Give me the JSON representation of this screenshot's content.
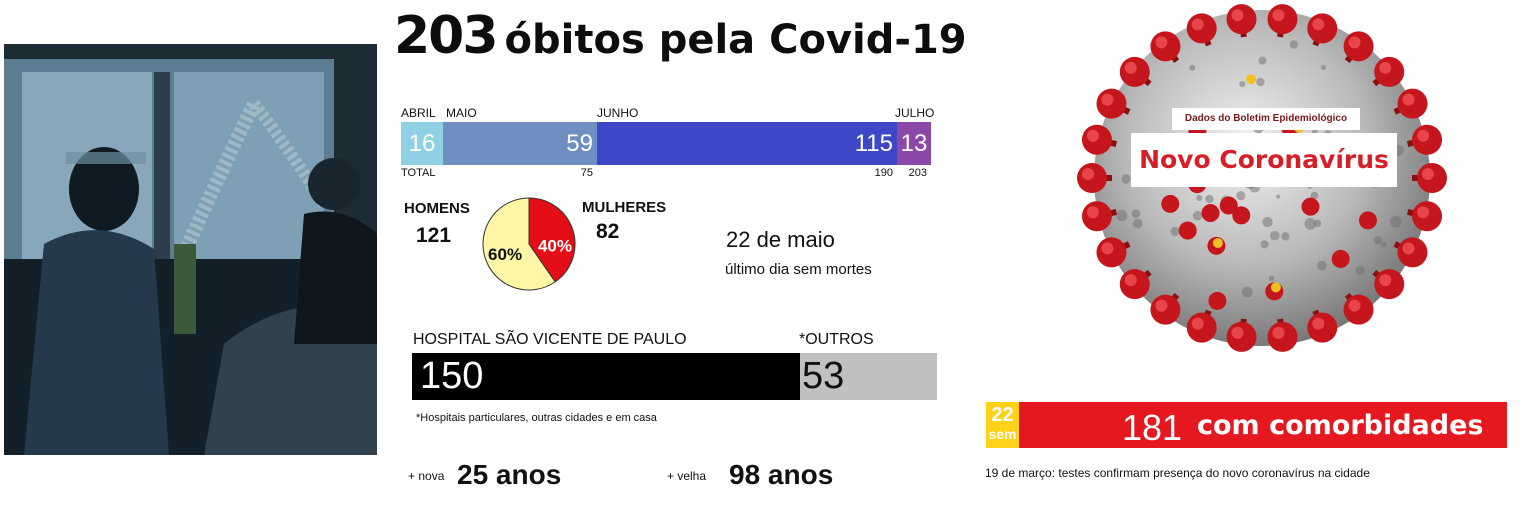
{
  "title": {
    "number": "203",
    "text": "óbitos pela Covid-19"
  },
  "colors": {
    "abril": "#8fd0e4",
    "maio": "#6f8fc2",
    "junho": "#3d47c7",
    "julho": "#8c48a8",
    "female": "#e30e16",
    "male": "#fdf7a5",
    "hospital": "#000000",
    "outros": "#c0c0c0",
    "sem": "#ffd21a",
    "comorbidity": "#e5181f"
  },
  "chart_data": [
    {
      "type": "bar",
      "categories": [
        "ABRIL",
        "MAIO",
        "JUNHO",
        "JULHO"
      ],
      "values": [
        16,
        59,
        115,
        13
      ],
      "cumulative_labels": [
        "TOTAL",
        "75",
        "190",
        "203"
      ],
      "total": 203
    },
    {
      "type": "pie",
      "categories": [
        "HOMENS",
        "MULHERES"
      ],
      "values": [
        121,
        82
      ],
      "percent_labels": [
        "60%",
        "40%"
      ]
    },
    {
      "type": "bar",
      "categories": [
        "HOSPITAL SÃO VICENTE DE PAULO",
        "*OUTROS"
      ],
      "values": [
        150,
        53
      ]
    }
  ],
  "gender": {
    "men_label": "HOMENS",
    "men_value": "121",
    "women_label": "MULHERES",
    "women_value": "82"
  },
  "last_day": {
    "date": "22 de maio",
    "caption": "último dia sem mortes"
  },
  "hospital": {
    "note": "*Hospitais particulares, outras cidades e em casa"
  },
  "ages": {
    "youngest_label": "+ nova",
    "youngest_value": "25 anos",
    "oldest_label": "+ velha",
    "oldest_value": "98 anos"
  },
  "virus": {
    "header": "Dados do Boletim Epidemiológico",
    "title": "Novo Coronavírus"
  },
  "comorbidity": {
    "week_number": "22",
    "week_label": "sem",
    "count": "181",
    "label": "com comorbidades"
  },
  "march_note": "19 de março: testes confirmam presença do novo coronavírus na cidade"
}
